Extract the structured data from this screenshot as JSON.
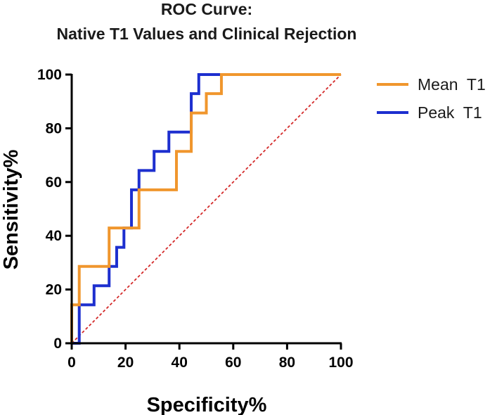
{
  "chart_data": {
    "type": "line",
    "title": "ROC Curve:",
    "subtitle": "Native T1 Values and  Clinical  Rejection",
    "xlabel": "Specificity%",
    "ylabel": "Sensitivity%",
    "xlim": [
      0,
      100
    ],
    "ylim": [
      0,
      100
    ],
    "xticks": [
      "0",
      "20",
      "40",
      "60",
      "80",
      "100"
    ],
    "yticks": [
      "0",
      "20",
      "40",
      "60",
      "80",
      "100"
    ],
    "grid": false,
    "legend_position": "right",
    "series": [
      {
        "name": "Mean  T1",
        "color": "#f0962d",
        "x": [
          0,
          0,
          2.8,
          2.8,
          13.9,
          13.9,
          25,
          25,
          38.9,
          38.9,
          44.4,
          44.4,
          50,
          50,
          55.6,
          55.6,
          100
        ],
        "y": [
          0,
          14.3,
          14.3,
          28.6,
          28.6,
          42.9,
          42.9,
          57.1,
          57.1,
          71.4,
          71.4,
          85.7,
          85.7,
          92.9,
          92.9,
          100,
          100
        ]
      },
      {
        "name": "Peak  T1",
        "color": "#1d2fcf",
        "x": [
          0,
          2.8,
          2.8,
          8.3,
          8.3,
          13.9,
          13.9,
          16.7,
          16.7,
          19.4,
          19.4,
          22.2,
          22.2,
          25,
          25,
          30.6,
          30.6,
          36.1,
          36.1,
          44.4,
          44.4,
          47.2,
          47.2,
          50,
          50,
          100
        ],
        "y": [
          0,
          0,
          14.3,
          14.3,
          21.4,
          21.4,
          28.6,
          28.6,
          35.7,
          35.7,
          42.9,
          42.9,
          57.1,
          57.1,
          64.3,
          64.3,
          71.4,
          71.4,
          78.6,
          78.6,
          92.9,
          92.9,
          100,
          100,
          100,
          100
        ]
      }
    ],
    "reference_line": {
      "x": [
        0,
        100
      ],
      "y": [
        0,
        100
      ],
      "color": "#d42a2a",
      "style": "dashed"
    }
  }
}
